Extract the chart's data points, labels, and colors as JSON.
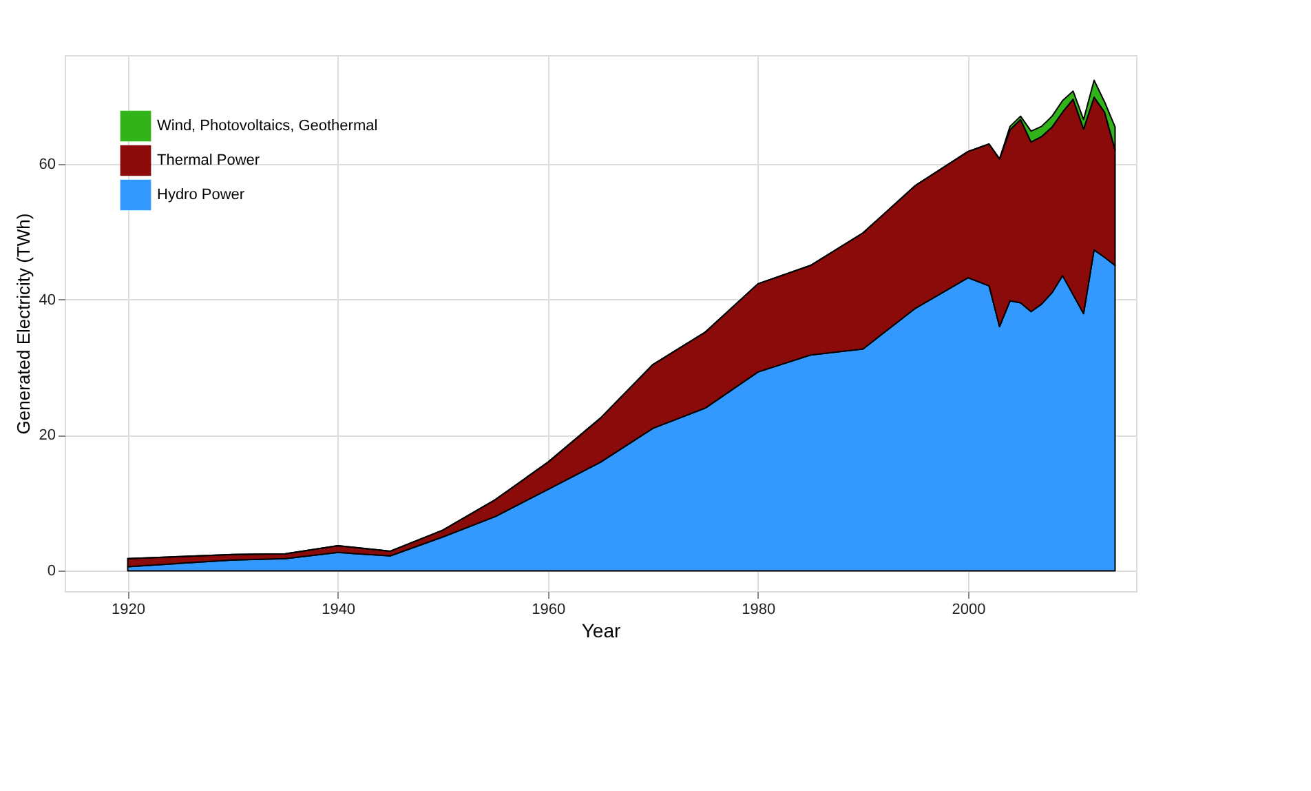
{
  "chart_data": {
    "type": "area",
    "stacked": true,
    "xlabel": "Year",
    "ylabel": "Generated Electricity (TWh)",
    "x": [
      1920,
      1925,
      1930,
      1935,
      1940,
      1945,
      1950,
      1955,
      1960,
      1965,
      1970,
      1975,
      1980,
      1985,
      1990,
      1995,
      2000,
      2002,
      2003,
      2004,
      2005,
      2006,
      2007,
      2008,
      2009,
      2010,
      2011,
      2012,
      2013,
      2014
    ],
    "series": [
      {
        "name": "Hydro Power",
        "color": "#3399ff",
        "values": [
          0.6,
          1.1,
          1.6,
          1.8,
          2.7,
          2.2,
          5,
          8,
          12,
          16,
          21,
          24,
          29.3,
          31.8,
          32.7,
          38.7,
          43.2,
          42,
          36,
          39.8,
          39.5,
          38.2,
          39.3,
          41,
          43.5,
          40.7,
          37.9,
          47.3,
          46.2,
          45
        ]
      },
      {
        "name": "Thermal Power",
        "color": "#8b0a0a",
        "values": [
          1.2,
          1.0,
          0.8,
          0.7,
          1.0,
          0.7,
          1.0,
          2.5,
          4,
          6.5,
          9.4,
          11.2,
          13,
          13.2,
          17.1,
          18.1,
          18.6,
          20.9,
          24.7,
          25.2,
          27,
          25,
          24.7,
          24.4,
          24.1,
          28.8,
          27.2,
          22.5,
          21.4,
          17
        ]
      },
      {
        "name": "Wind, Photovoltaics, Geothermal",
        "color": "#33b31a",
        "values": [
          0,
          0,
          0,
          0,
          0,
          0,
          0,
          0,
          0,
          0,
          0,
          0,
          0,
          0,
          0,
          0,
          0,
          0,
          0,
          0.5,
          0.5,
          1.6,
          1.5,
          1.6,
          1.7,
          1.2,
          1.4,
          2.5,
          1.5,
          3.4
        ]
      }
    ],
    "xlim": [
      1914,
      2016
    ],
    "xticks": [
      1920,
      1940,
      1960,
      1980,
      2000
    ],
    "ylim": [
      -3,
      76
    ],
    "yticks": [
      0,
      20,
      40,
      60
    ],
    "grid": true,
    "legend": "top left"
  }
}
